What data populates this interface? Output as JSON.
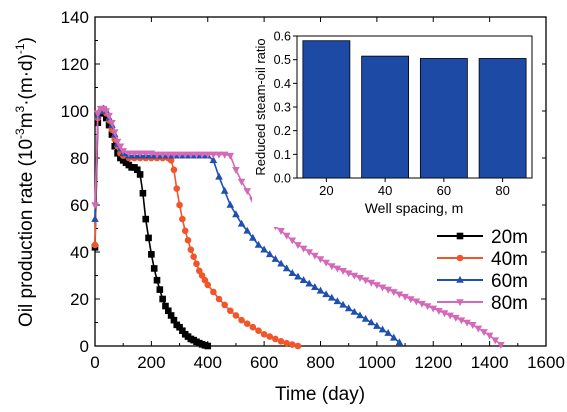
{
  "chart_data": [
    {
      "type": "line",
      "xlabel": "Time (day)",
      "ylabel_main": "Oil production rate (10",
      "ylabel_exp1": "-3",
      "ylabel_mid": "m",
      "ylabel_exp2": "3",
      "ylabel_end": "·(m·d)",
      "ylabel_exp3": "-1",
      "ylabel_close": ")",
      "xlim": [
        0,
        1600
      ],
      "ylim": [
        0,
        140
      ],
      "xticks": [
        0,
        200,
        400,
        600,
        800,
        1000,
        1200,
        1400,
        1600
      ],
      "yticks": [
        0,
        20,
        40,
        60,
        80,
        100,
        120,
        140
      ],
      "legend_position": "right",
      "series": [
        {
          "name": "20m",
          "color": "#000000",
          "marker": "square",
          "x": [
            0,
            10,
            20,
            30,
            40,
            50,
            60,
            70,
            80,
            90,
            100,
            110,
            120,
            130,
            140,
            150,
            160,
            170,
            180,
            190,
            200,
            210,
            220,
            230,
            240,
            250,
            260,
            270,
            280,
            290,
            300,
            310,
            320,
            330,
            340,
            350,
            360,
            370,
            380,
            390,
            400
          ],
          "y": [
            42,
            95,
            99,
            100,
            97,
            94,
            90,
            85,
            82,
            80,
            79,
            78,
            77,
            76,
            76,
            75,
            73,
            65,
            54,
            46,
            39,
            33,
            28,
            24,
            20,
            17,
            15,
            13,
            11,
            9,
            8,
            6.5,
            5,
            4,
            3,
            2.5,
            1.8,
            1.2,
            0.7,
            0.3,
            0
          ]
        },
        {
          "name": "40m",
          "color": "#f0562a",
          "marker": "circle",
          "x": [
            0,
            10,
            20,
            30,
            40,
            50,
            60,
            70,
            80,
            90,
            100,
            120,
            140,
            160,
            180,
            200,
            220,
            240,
            260,
            270,
            280,
            290,
            300,
            310,
            320,
            330,
            340,
            350,
            360,
            370,
            380,
            390,
            400,
            420,
            440,
            460,
            480,
            500,
            520,
            540,
            560,
            580,
            600,
            620,
            640,
            660,
            680,
            700,
            720
          ],
          "y": [
            43,
            97,
            100,
            101,
            99,
            96,
            92,
            88,
            85,
            82,
            81,
            80,
            80,
            80,
            80,
            80,
            80,
            80,
            80,
            79,
            75,
            67,
            60,
            54,
            49,
            45,
            41,
            38,
            35,
            32,
            30,
            28,
            26,
            23,
            20,
            17.5,
            15,
            13,
            11,
            9.5,
            8,
            6.5,
            5,
            4,
            3,
            2,
            1.2,
            0.6,
            0
          ]
        },
        {
          "name": "60m",
          "color": "#1f4fb0",
          "marker": "triangle-up",
          "x": [
            0,
            10,
            20,
            30,
            40,
            50,
            60,
            70,
            80,
            90,
            100,
            120,
            140,
            160,
            180,
            200,
            220,
            240,
            260,
            280,
            300,
            320,
            340,
            360,
            380,
            400,
            420,
            440,
            460,
            480,
            500,
            520,
            540,
            560,
            580,
            600,
            620,
            640,
            660,
            680,
            700,
            720,
            740,
            760,
            780,
            800,
            820,
            840,
            860,
            880,
            900,
            920,
            940,
            960,
            980,
            1000,
            1020,
            1040,
            1060,
            1080
          ],
          "y": [
            54,
            98,
            100,
            101,
            100,
            97,
            94,
            90,
            86,
            84,
            82,
            81,
            81,
            81,
            81,
            81,
            81,
            81,
            81,
            81,
            81,
            81,
            81,
            81,
            81,
            81,
            79,
            72,
            66,
            60,
            56,
            52,
            49,
            46,
            43,
            41,
            39,
            37,
            35,
            33,
            31,
            29.5,
            28,
            26.5,
            25,
            23.5,
            22,
            20.5,
            19,
            17.5,
            16,
            14.5,
            13,
            11.5,
            10,
            8.5,
            7,
            5.5,
            3.5,
            1.5
          ]
        },
        {
          "name": "80m",
          "color": "#d469b8",
          "marker": "triangle-down",
          "x": [
            0,
            10,
            20,
            30,
            40,
            50,
            60,
            70,
            80,
            90,
            100,
            120,
            140,
            160,
            180,
            200,
            220,
            240,
            260,
            280,
            300,
            320,
            340,
            360,
            380,
            400,
            420,
            440,
            460,
            480,
            500,
            520,
            540,
            560,
            580,
            600,
            620,
            640,
            660,
            680,
            700,
            720,
            740,
            760,
            780,
            800,
            820,
            840,
            860,
            880,
            900,
            920,
            940,
            960,
            980,
            1000,
            1020,
            1040,
            1060,
            1080,
            1100,
            1120,
            1140,
            1160,
            1180,
            1200,
            1220,
            1240,
            1260,
            1280,
            1300,
            1320,
            1340,
            1360,
            1380,
            1400,
            1420,
            1440
          ],
          "y": [
            60,
            99,
            101,
            101,
            100,
            98,
            95,
            91,
            87,
            85,
            83,
            82,
            82,
            82,
            82,
            82,
            81.5,
            81.5,
            81.5,
            81.5,
            81.5,
            81.5,
            81.5,
            81.5,
            81.5,
            81.5,
            81.5,
            81.5,
            81.5,
            81,
            75,
            70,
            66,
            62,
            59,
            56,
            53.5,
            51,
            49,
            47,
            45,
            43,
            41.5,
            40,
            38.5,
            37,
            35.5,
            34,
            33,
            32,
            31,
            30,
            29,
            28,
            27,
            26,
            25,
            24,
            23,
            22,
            21,
            20,
            19,
            18,
            17,
            16,
            15,
            14,
            13,
            12,
            11,
            10,
            9,
            7.5,
            6,
            4.5,
            2.5,
            0.5
          ]
        }
      ]
    },
    {
      "type": "bar",
      "xlabel": "Well spacing, m",
      "ylabel": "Reduced steam-oil ratio",
      "categories": [
        "20",
        "40",
        "60",
        "80"
      ],
      "values": [
        0.58,
        0.515,
        0.505,
        0.505
      ],
      "ylim": [
        0,
        0.6
      ],
      "yticks": [
        "0.0",
        "0.1",
        "0.2",
        "0.3",
        "0.4",
        "0.5",
        "0.6"
      ],
      "bar_color": "#1d4aa5"
    }
  ]
}
